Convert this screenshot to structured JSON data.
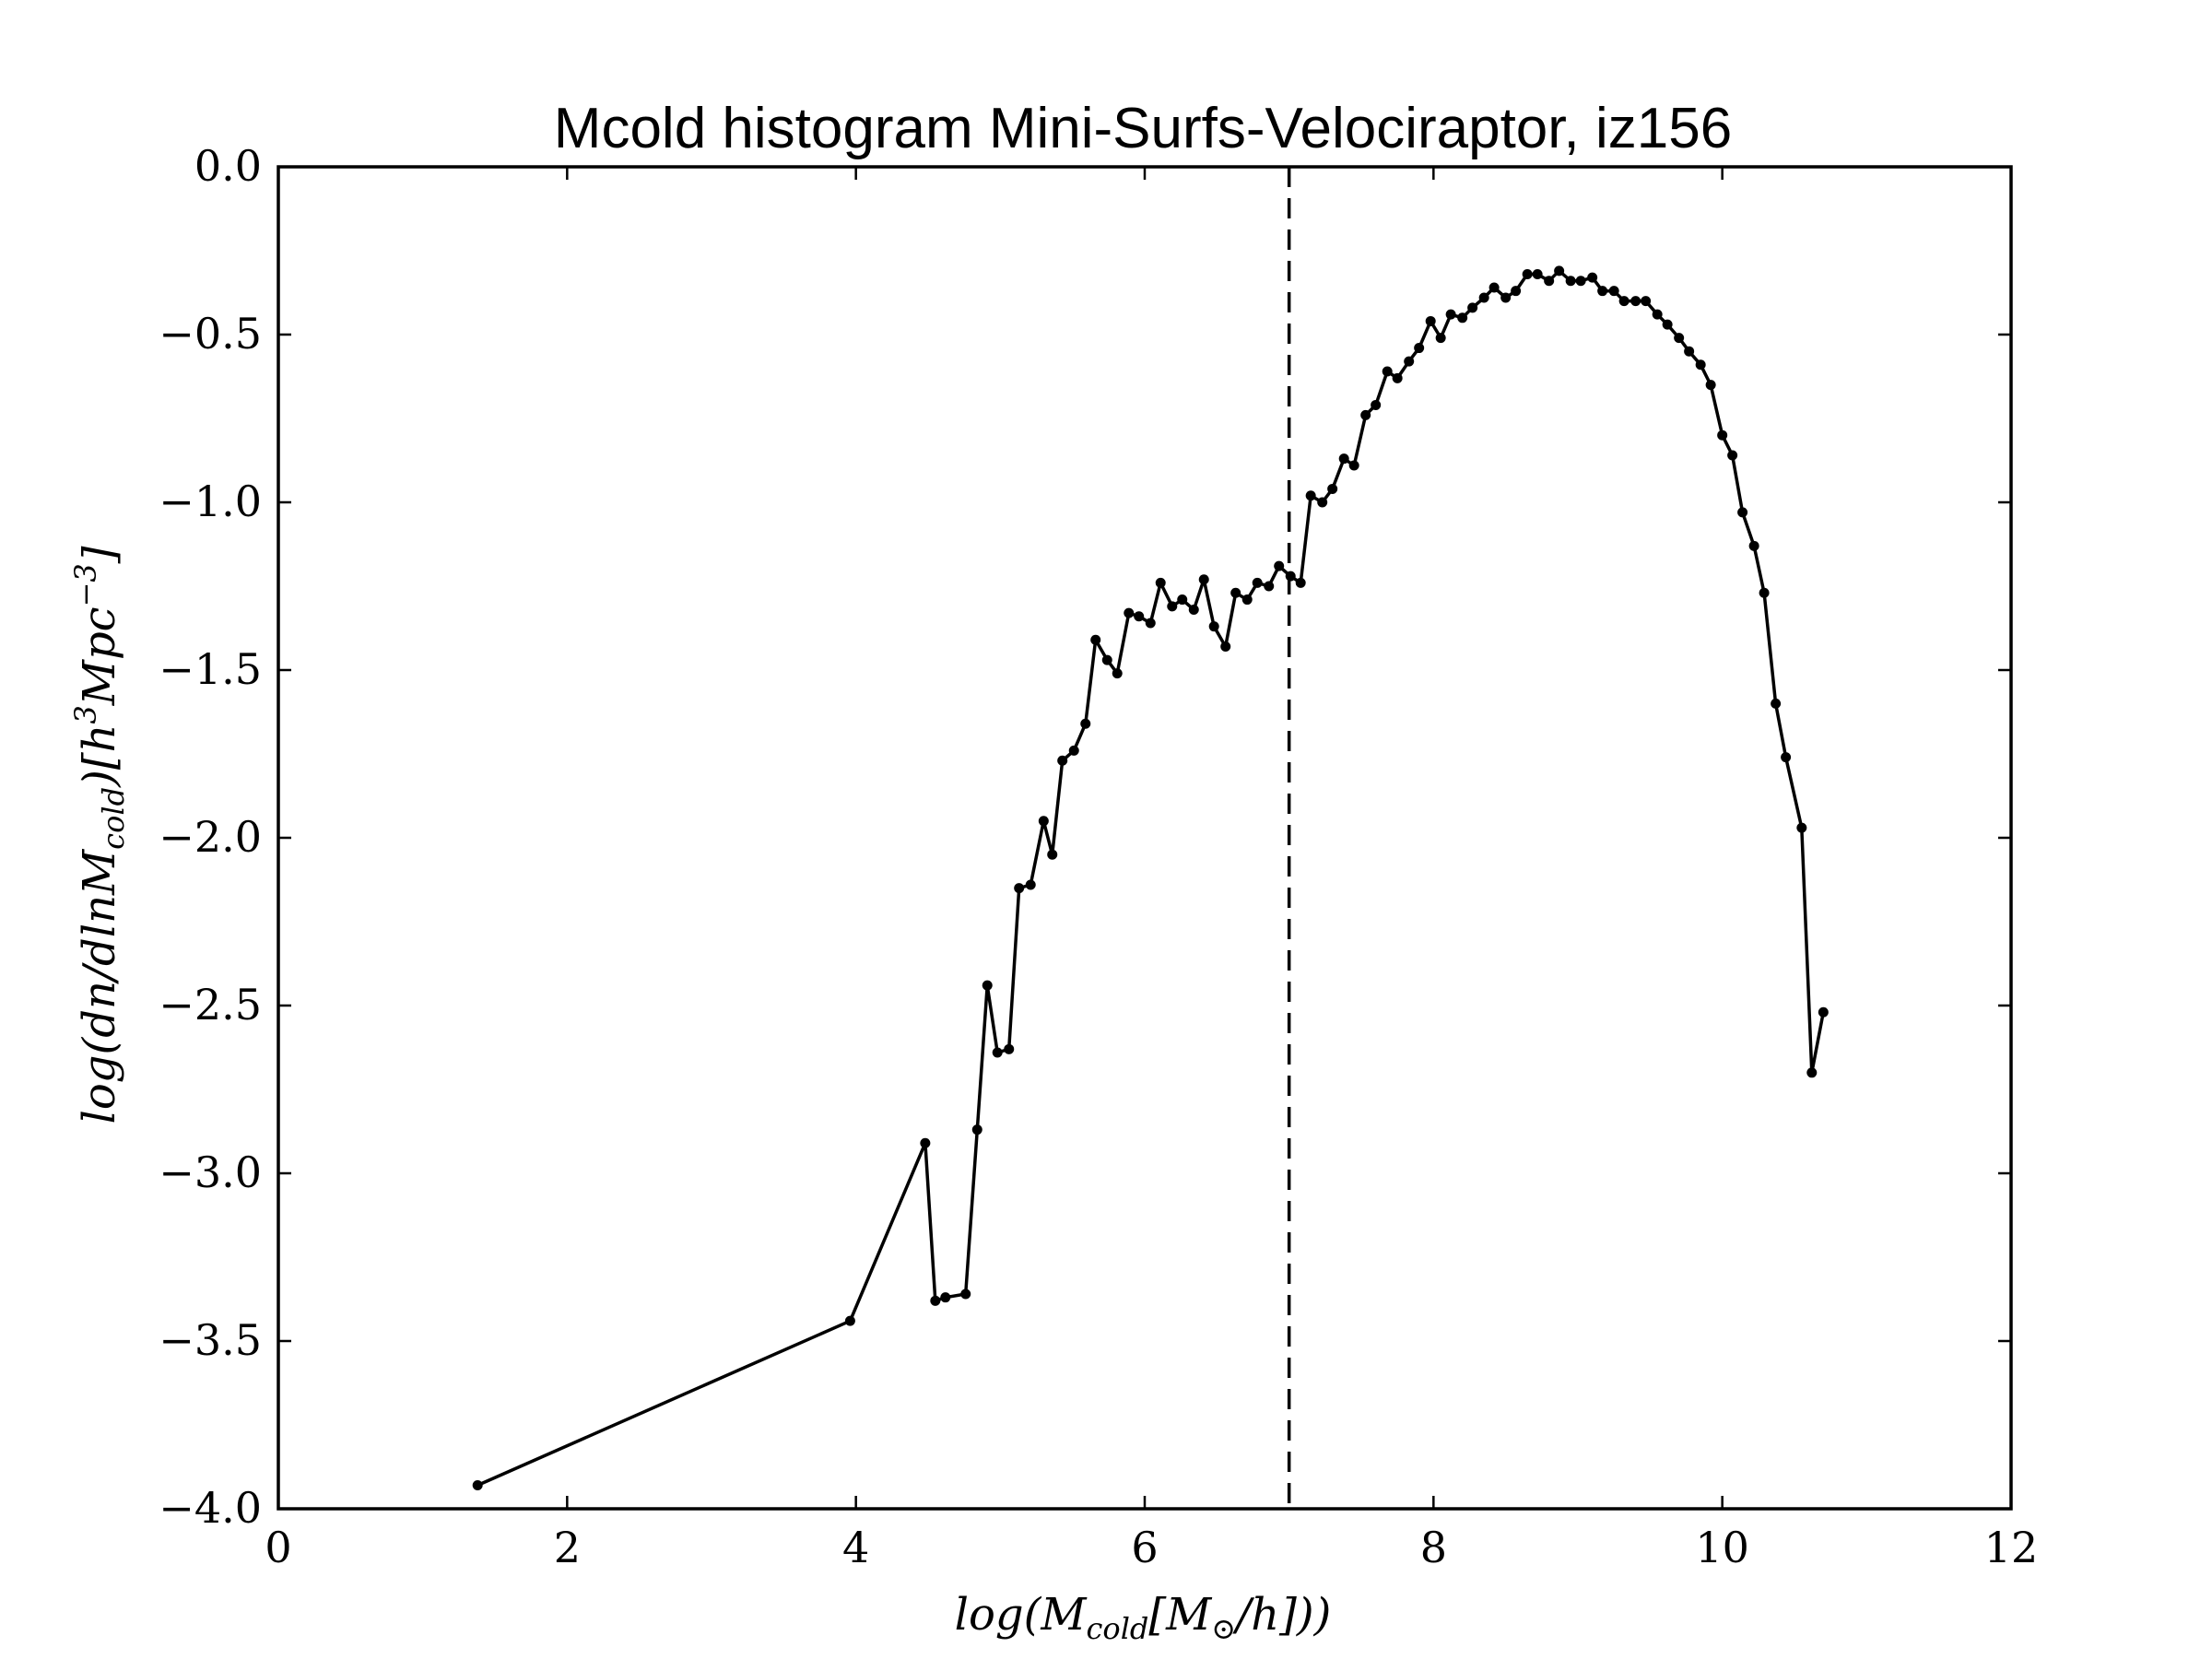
{
  "chart_data": {
    "type": "line",
    "title": "Mcold histogram Mini-Surfs-Velociraptor, iz156",
    "xlabel": "log(M_cold[M_⊙/h]))",
    "ylabel": "log(dn/dlnM_cold)[h^3Mpc^-3]",
    "xlim": [
      0,
      12
    ],
    "ylim": [
      -4.0,
      0.0
    ],
    "xticks": [
      "0",
      "2",
      "4",
      "6",
      "8",
      "10",
      "12"
    ],
    "yticks": [
      "0.0",
      "−0.5",
      "−1.0",
      "−1.5",
      "−2.0",
      "−2.5",
      "−3.0",
      "−3.5",
      "−4.0"
    ],
    "grid": false,
    "vline": {
      "x": 7.0,
      "style": "dashed"
    },
    "series": [
      {
        "color": "#000000",
        "x": [
          1.38,
          3.96,
          4.48,
          4.55,
          4.62,
          4.76,
          4.84,
          4.91,
          4.98,
          5.06,
          5.13,
          5.21,
          5.3,
          5.36,
          5.43,
          5.51,
          5.59,
          5.66,
          5.74,
          5.81,
          5.89,
          5.96,
          6.04,
          6.11,
          6.19,
          6.26,
          6.34,
          6.41,
          6.48,
          6.56,
          6.63,
          6.71,
          6.78,
          6.86,
          6.93,
          7.01,
          7.08,
          7.15,
          7.23,
          7.3,
          7.38,
          7.45,
          7.53,
          7.6,
          7.68,
          7.75,
          7.83,
          7.9,
          7.98,
          8.05,
          8.12,
          8.2,
          8.27,
          8.35,
          8.42,
          8.5,
          8.57,
          8.65,
          8.72,
          8.8,
          8.87,
          8.95,
          9.02,
          9.1,
          9.17,
          9.25,
          9.32,
          9.4,
          9.47,
          9.55,
          9.62,
          9.7,
          9.77,
          9.85,
          9.92,
          10.0,
          10.07,
          10.14,
          10.22,
          10.29,
          10.37,
          10.44,
          10.55,
          10.62,
          10.7
        ],
        "y": [
          -3.93,
          -3.44,
          -2.91,
          -3.38,
          -3.37,
          -3.36,
          -2.87,
          -2.44,
          -2.64,
          -2.63,
          -2.15,
          -2.14,
          -1.95,
          -2.05,
          -1.77,
          -1.74,
          -1.66,
          -1.41,
          -1.47,
          -1.51,
          -1.33,
          -1.34,
          -1.36,
          -1.24,
          -1.31,
          -1.29,
          -1.32,
          -1.23,
          -1.37,
          -1.43,
          -1.27,
          -1.29,
          -1.24,
          -1.25,
          -1.19,
          -1.22,
          -1.24,
          -0.98,
          -1.0,
          -0.96,
          -0.87,
          -0.89,
          -0.74,
          -0.71,
          -0.61,
          -0.63,
          -0.58,
          -0.54,
          -0.46,
          -0.51,
          -0.44,
          -0.45,
          -0.42,
          -0.39,
          -0.36,
          -0.39,
          -0.37,
          -0.32,
          -0.32,
          -0.34,
          -0.31,
          -0.34,
          -0.34,
          -0.33,
          -0.37,
          -0.37,
          -0.4,
          -0.4,
          -0.4,
          -0.44,
          -0.47,
          -0.51,
          -0.55,
          -0.59,
          -0.65,
          -0.8,
          -0.86,
          -1.03,
          -1.13,
          -1.27,
          -1.6,
          -1.76,
          -1.97,
          -2.7,
          -2.52
        ]
      }
    ]
  }
}
